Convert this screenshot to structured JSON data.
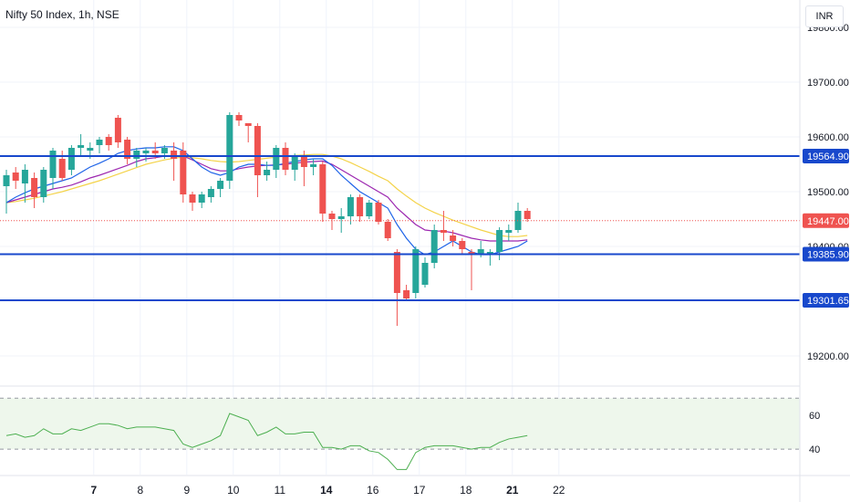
{
  "header": {
    "title": "Nifty 50 Index, 1h, NSE",
    "currency": "INR"
  },
  "chart_data": {
    "type": "candlestick",
    "ylim": [
      19150,
      19850
    ],
    "y_ticks": [
      "19800.00",
      "19700.00",
      "19600.00",
      "19500.00",
      "19400.00",
      "19200.00"
    ],
    "x_ticks": [
      {
        "label": "7",
        "i": 4,
        "bold": true
      },
      {
        "label": "8",
        "i": 9,
        "bold": false
      },
      {
        "label": "9",
        "i": 14,
        "bold": false
      },
      {
        "label": "10",
        "i": 19,
        "bold": false
      },
      {
        "label": "11",
        "i": 24,
        "bold": false
      },
      {
        "label": "14",
        "i": 29,
        "bold": true
      },
      {
        "label": "16",
        "i": 34,
        "bold": false
      },
      {
        "label": "17",
        "i": 39,
        "bold": false
      },
      {
        "label": "18",
        "i": 44,
        "bold": false
      },
      {
        "label": "21",
        "i": 49,
        "bold": true
      },
      {
        "label": "22",
        "i": 54,
        "bold": false
      }
    ],
    "candles": [
      [
        19510,
        19530,
        19460,
        19540
      ],
      [
        19535,
        19520,
        19505,
        19545
      ],
      [
        19515,
        19540,
        19480,
        19550
      ],
      [
        19525,
        19490,
        19470,
        19535
      ],
      [
        19490,
        19540,
        19480,
        19545
      ],
      [
        19525,
        19575,
        19505,
        19580
      ],
      [
        19560,
        19525,
        19520,
        19575
      ],
      [
        19540,
        19580,
        19530,
        19585
      ],
      [
        19580,
        19585,
        19565,
        19605
      ],
      [
        19575,
        19580,
        19560,
        19590
      ],
      [
        19585,
        19595,
        19570,
        19600
      ],
      [
        19600,
        19585,
        19575,
        19605
      ],
      [
        19635,
        19590,
        19580,
        19640
      ],
      [
        19595,
        19560,
        19550,
        19600
      ],
      [
        19560,
        19575,
        19545,
        19580
      ],
      [
        19570,
        19575,
        19555,
        19580
      ],
      [
        19575,
        19570,
        19560,
        19590
      ],
      [
        19570,
        19580,
        19560,
        19585
      ],
      [
        19575,
        19560,
        19520,
        19590
      ],
      [
        19575,
        19495,
        19480,
        19590
      ],
      [
        19495,
        19480,
        19465,
        19500
      ],
      [
        19480,
        19495,
        19470,
        19500
      ],
      [
        19490,
        19505,
        19480,
        19510
      ],
      [
        19505,
        19520,
        19490,
        19525
      ],
      [
        19520,
        19640,
        19505,
        19645
      ],
      [
        19640,
        19630,
        19620,
        19645
      ],
      [
        19625,
        19620,
        19590,
        19625
      ],
      [
        19620,
        19530,
        19490,
        19625
      ],
      [
        19530,
        19540,
        19520,
        19555
      ],
      [
        19540,
        19580,
        19525,
        19585
      ],
      [
        19580,
        19540,
        19530,
        19590
      ],
      [
        19540,
        19565,
        19520,
        19570
      ],
      [
        19565,
        19545,
        19510,
        19575
      ],
      [
        19545,
        19550,
        19530,
        19560
      ],
      [
        19550,
        19460,
        19445,
        19555
      ],
      [
        19460,
        19450,
        19430,
        19465
      ],
      [
        19450,
        19455,
        19425,
        19470
      ],
      [
        19455,
        19490,
        19440,
        19495
      ],
      [
        19490,
        19455,
        19445,
        19495
      ],
      [
        19455,
        19480,
        19450,
        19485
      ],
      [
        19480,
        19445,
        19440,
        19485
      ],
      [
        19445,
        19415,
        19410,
        19450
      ],
      [
        19390,
        19315,
        19255,
        19395
      ],
      [
        19320,
        19305,
        19300,
        19330
      ],
      [
        19315,
        19395,
        19305,
        19400
      ],
      [
        19330,
        19370,
        19325,
        19380
      ],
      [
        19370,
        19430,
        19360,
        19440
      ],
      [
        19430,
        19425,
        19410,
        19465
      ],
      [
        19420,
        19410,
        19400,
        19430
      ],
      [
        19410,
        19395,
        19385,
        19415
      ],
      [
        19390,
        19385,
        19320,
        19395
      ],
      [
        19385,
        19395,
        19380,
        19410
      ],
      [
        19385,
        19390,
        19365,
        19395
      ],
      [
        19390,
        19430,
        19375,
        19435
      ],
      [
        19425,
        19430,
        19410,
        19440
      ],
      [
        19430,
        19465,
        19425,
        19480
      ],
      [
        19465,
        19450,
        19445,
        19470
      ]
    ],
    "ma_fast": [
      19480,
      19490,
      19498,
      19505,
      19510,
      19515,
      19520,
      19525,
      19535,
      19545,
      19552,
      19560,
      19570,
      19575,
      19578,
      19580,
      19580,
      19582,
      19582,
      19575,
      19560,
      19545,
      19535,
      19530,
      19535,
      19545,
      19550,
      19550,
      19548,
      19548,
      19552,
      19555,
      19558,
      19560,
      19560,
      19548,
      19530,
      19515,
      19500,
      19490,
      19480,
      19470,
      19440,
      19415,
      19395,
      19385,
      19390,
      19400,
      19410,
      19400,
      19390,
      19385,
      19385,
      19390,
      19395,
      19400,
      19410
    ],
    "ma_mid": [
      19480,
      19485,
      19490,
      19495,
      19500,
      19505,
      19508,
      19512,
      19518,
      19525,
      19530,
      19536,
      19542,
      19548,
      19555,
      19560,
      19562,
      19565,
      19566,
      19565,
      19558,
      19550,
      19542,
      19538,
      19538,
      19542,
      19545,
      19547,
      19548,
      19549,
      19550,
      19552,
      19554,
      19555,
      19556,
      19550,
      19540,
      19530,
      19520,
      19510,
      19500,
      19490,
      19470,
      19455,
      19440,
      19430,
      19428,
      19428,
      19425,
      19420,
      19415,
      19412,
      19410,
      19410,
      19410,
      19410,
      19412
    ],
    "ma_slow": [
      19480,
      19482,
      19485,
      19488,
      19492,
      19496,
      19500,
      19505,
      19510,
      19515,
      19520,
      19526,
      19532,
      19538,
      19544,
      19550,
      19554,
      19558,
      19561,
      19563,
      19562,
      19560,
      19557,
      19555,
      19554,
      19555,
      19557,
      19559,
      19561,
      19563,
      19565,
      19566,
      19567,
      19568,
      19568,
      19565,
      19560,
      19553,
      19545,
      19537,
      19528,
      19520,
      19505,
      19492,
      19480,
      19470,
      19462,
      19455,
      19448,
      19442,
      19436,
      19430,
      19425,
      19420,
      19418,
      19418,
      19420
    ],
    "levels": [
      {
        "value": 19564.9,
        "label": "19564.90"
      },
      {
        "value": 19385.9,
        "label": "19385.90"
      },
      {
        "value": 19301.65,
        "label": "19301.65"
      }
    ],
    "last_price": {
      "value": 19447.0,
      "label": "19447.00"
    },
    "rsi": {
      "ylim": [
        25,
        75
      ],
      "ticks": [
        "60",
        "40"
      ],
      "band": [
        40,
        70
      ],
      "values": [
        48,
        49,
        47,
        48,
        52,
        49,
        49,
        52,
        51,
        53,
        55,
        55,
        54,
        52,
        53,
        53,
        53,
        52,
        51,
        43,
        41,
        43,
        45,
        48,
        61,
        59,
        57,
        48,
        50,
        53,
        49,
        49,
        50,
        50,
        41,
        41,
        40,
        42,
        42,
        39,
        38,
        34,
        28,
        28,
        38,
        41,
        42,
        42,
        42,
        41,
        40,
        41,
        41,
        44,
        46,
        47,
        48
      ]
    }
  },
  "colors": {
    "up": "#26a69a",
    "down": "#ef5350",
    "level": "#1848cc",
    "ma_fast": "#1e63e8",
    "ma_mid": "#9c27b0",
    "ma_slow": "#f4d34a",
    "rsi_line": "#4caf50",
    "rsi_band": "#eef7ec",
    "label_bg": "#1848cc",
    "last_bg": "#ef5350"
  }
}
